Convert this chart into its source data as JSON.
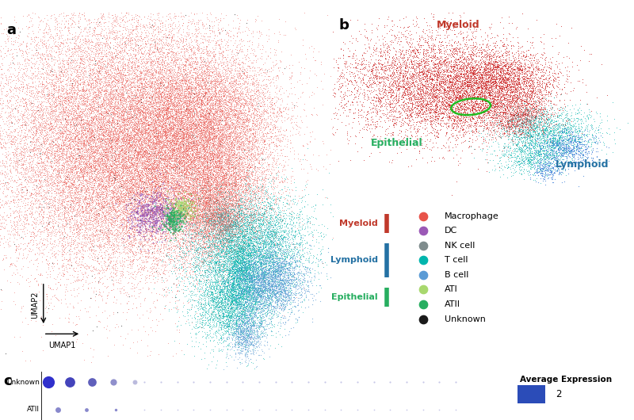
{
  "cell_types": {
    "Macrophage": {
      "color": "#E8534A",
      "group": "Myeloid"
    },
    "DC": {
      "color": "#9B59B6",
      "group": "Myeloid"
    },
    "NK cell": {
      "color": "#7F8C8D",
      "group": "Lymphoid"
    },
    "T cell": {
      "color": "#00B5AD",
      "group": "Lymphoid"
    },
    "B cell": {
      "color": "#5B9BD5",
      "group": "Lymphoid"
    },
    "ATI": {
      "color": "#A8D86E",
      "group": "Epithelial"
    },
    "ATII": {
      "color": "#27AE60",
      "group": "Epithelial"
    },
    "Unknown": {
      "color": "#1A1A1A",
      "group": ""
    }
  },
  "group_colors": {
    "Myeloid": "#C0392B",
    "Lymphoid": "#2471A3",
    "Epithelial": "#27AE60"
  },
  "background_color": "#FFFFFF",
  "figure_width": 8.0,
  "figure_height": 5.3
}
